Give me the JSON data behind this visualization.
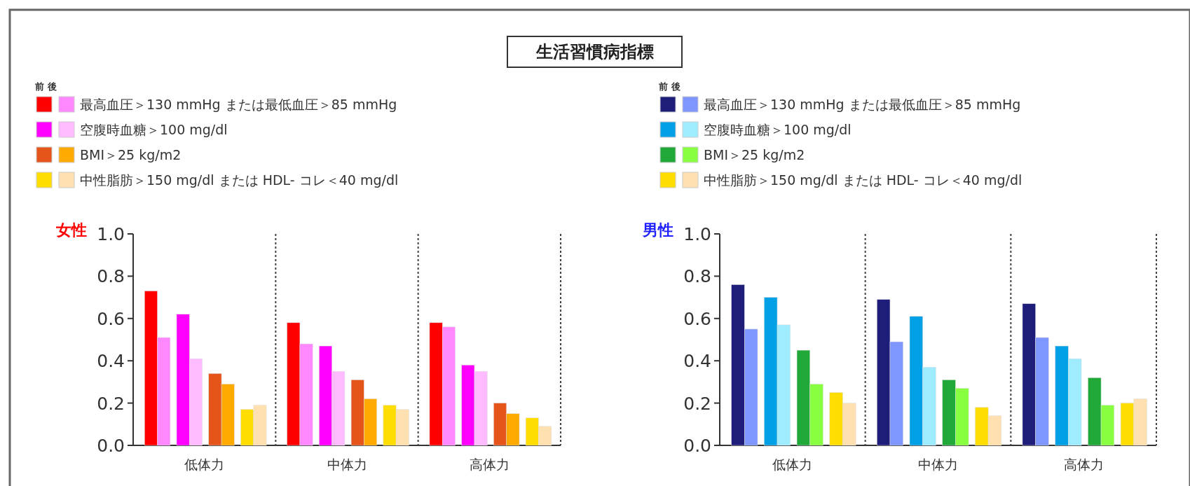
{
  "chart_data": [
    {
      "type": "bar",
      "title": "生活習慣病指標",
      "ylabel": "女性",
      "legend_title": "前 後",
      "legend": "top left",
      "categories": [
        "低体力",
        "中体力",
        "高体力"
      ],
      "ylim": [
        0,
        1
      ],
      "yticks": [
        {
          "value": 0,
          "label": "0.0"
        },
        {
          "value": 0.2,
          "label": "0.2"
        },
        {
          "value": 0.4,
          "label": "0.4"
        },
        {
          "value": 0.6,
          "label": "0.6"
        },
        {
          "value": 0.8,
          "label": "0.8"
        },
        {
          "value": 1,
          "label": "1.0"
        }
      ],
      "series": [
        {
          "color": "#ff0000",
          "values": [
            0.73,
            0.58,
            0.58
          ]
        },
        {
          "name": "最高血圧＞130 mmHg または最低血圧＞85 mmHg",
          "color": "#ff88ff",
          "values": [
            0.51,
            0.48,
            0.56
          ]
        },
        {
          "color": "#ff00ff",
          "values": [
            0.62,
            0.47,
            0.38
          ]
        },
        {
          "name": "空腹時血糖＞100 mg/dl",
          "color": "#ffbbff",
          "values": [
            0.41,
            0.35,
            0.35
          ]
        },
        {
          "color": "#e5541a",
          "values": [
            0.34,
            0.31,
            0.2
          ]
        },
        {
          "name": "BMI＞25 kg/m2",
          "color": "#ffaa00",
          "values": [
            0.29,
            0.22,
            0.15
          ]
        },
        {
          "color": "#ffdd00",
          "values": [
            0.17,
            0.19,
            0.13
          ]
        },
        {
          "name": "中性脂肪＞150 mg/dl または HDL- コレ＜40 mg/dl",
          "color": "#ffe0b0",
          "values": [
            0.19,
            0.17,
            0.09
          ]
        }
      ]
    },
    {
      "type": "bar",
      "ylabel": "男性",
      "legend_title": "前 後",
      "legend": "top left",
      "categories": [
        "低体力",
        "中体力",
        "高体力"
      ],
      "ylim": [
        0,
        1
      ],
      "yticks": [
        {
          "value": 0,
          "label": "0.0"
        },
        {
          "value": 0.2,
          "label": "0.2"
        },
        {
          "value": 0.4,
          "label": "0.4"
        },
        {
          "value": 0.6,
          "label": "0.6"
        },
        {
          "value": 0.8,
          "label": "0.8"
        },
        {
          "value": 1,
          "label": "1.0"
        }
      ],
      "series": [
        {
          "color": "#1e1e7a",
          "values": [
            0.76,
            0.69,
            0.67
          ]
        },
        {
          "name": "最高血圧＞130 mmHg または最低血圧＞85 mmHg",
          "color": "#7f96ff",
          "values": [
            0.55,
            0.49,
            0.51
          ]
        },
        {
          "color": "#00a0e6",
          "values": [
            0.7,
            0.61,
            0.47
          ]
        },
        {
          "name": "空腹時血糖＞100 mg/dl",
          "color": "#a0ecff",
          "values": [
            0.57,
            0.37,
            0.41
          ]
        },
        {
          "color": "#20a838",
          "values": [
            0.45,
            0.31,
            0.32
          ]
        },
        {
          "name": "BMI＞25 kg/m2",
          "color": "#88ff40",
          "values": [
            0.29,
            0.27,
            0.19
          ]
        },
        {
          "color": "#ffdd00",
          "values": [
            0.25,
            0.18,
            0.2
          ]
        },
        {
          "name": "中性脂肪＞150 mg/dl または HDL- コレ＜40 mg/dl",
          "color": "#ffe0b0",
          "values": [
            0.2,
            0.14,
            0.22
          ]
        }
      ]
    }
  ]
}
